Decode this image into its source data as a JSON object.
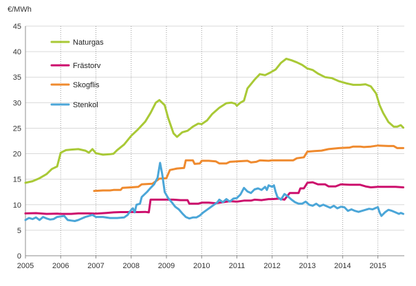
{
  "chart_data": {
    "type": "line",
    "title": "",
    "ylabel": "€/MWh",
    "xlabel": "",
    "ylim": [
      0,
      45
    ],
    "yticks": [
      0,
      5,
      10,
      15,
      20,
      25,
      30,
      35,
      40,
      45
    ],
    "xlim": [
      2005,
      2015.75
    ],
    "xticks": [
      2005,
      2006,
      2007,
      2008,
      2009,
      2010,
      2011,
      2012,
      2013,
      2014,
      2015
    ],
    "legend": "top-left inside",
    "series": [
      {
        "name": "Naturgas",
        "color": "#a9c936",
        "points": [
          [
            2005.0,
            14.3
          ],
          [
            2005.2,
            14.6
          ],
          [
            2005.4,
            15.2
          ],
          [
            2005.6,
            16.0
          ],
          [
            2005.75,
            17.0
          ],
          [
            2005.9,
            17.5
          ],
          [
            2006.0,
            20.2
          ],
          [
            2006.15,
            20.7
          ],
          [
            2006.3,
            20.8
          ],
          [
            2006.5,
            20.9
          ],
          [
            2006.7,
            20.6
          ],
          [
            2006.8,
            20.2
          ],
          [
            2006.9,
            20.9
          ],
          [
            2007.0,
            20.1
          ],
          [
            2007.2,
            19.8
          ],
          [
            2007.4,
            19.9
          ],
          [
            2007.5,
            20.0
          ],
          [
            2007.6,
            20.7
          ],
          [
            2007.8,
            21.8
          ],
          [
            2008.0,
            23.5
          ],
          [
            2008.2,
            24.8
          ],
          [
            2008.4,
            26.3
          ],
          [
            2008.55,
            28.0
          ],
          [
            2008.7,
            30.0
          ],
          [
            2008.8,
            30.5
          ],
          [
            2008.95,
            29.5
          ],
          [
            2009.05,
            27.0
          ],
          [
            2009.2,
            24.0
          ],
          [
            2009.3,
            23.3
          ],
          [
            2009.45,
            24.2
          ],
          [
            2009.6,
            24.5
          ],
          [
            2009.75,
            25.3
          ],
          [
            2009.9,
            25.9
          ],
          [
            2010.0,
            25.8
          ],
          [
            2010.15,
            26.5
          ],
          [
            2010.3,
            27.8
          ],
          [
            2010.5,
            29.0
          ],
          [
            2010.7,
            29.9
          ],
          [
            2010.85,
            30.0
          ],
          [
            2010.95,
            29.8
          ],
          [
            2011.0,
            29.4
          ],
          [
            2011.1,
            30.0
          ],
          [
            2011.2,
            30.4
          ],
          [
            2011.3,
            32.8
          ],
          [
            2011.5,
            34.5
          ],
          [
            2011.65,
            35.6
          ],
          [
            2011.8,
            35.4
          ],
          [
            2011.95,
            35.9
          ],
          [
            2012.1,
            36.5
          ],
          [
            2012.25,
            37.8
          ],
          [
            2012.4,
            38.6
          ],
          [
            2012.55,
            38.3
          ],
          [
            2012.7,
            37.9
          ],
          [
            2012.85,
            37.4
          ],
          [
            2013.0,
            36.7
          ],
          [
            2013.15,
            36.4
          ],
          [
            2013.3,
            35.7
          ],
          [
            2013.5,
            35.0
          ],
          [
            2013.7,
            34.8
          ],
          [
            2013.9,
            34.2
          ],
          [
            2014.1,
            33.8
          ],
          [
            2014.3,
            33.5
          ],
          [
            2014.5,
            33.5
          ],
          [
            2014.65,
            33.6
          ],
          [
            2014.8,
            33.2
          ],
          [
            2014.95,
            31.8
          ],
          [
            2015.05,
            29.5
          ],
          [
            2015.15,
            28.0
          ],
          [
            2015.3,
            26.2
          ],
          [
            2015.45,
            25.3
          ],
          [
            2015.55,
            25.3
          ],
          [
            2015.65,
            25.6
          ],
          [
            2015.72,
            25.1
          ]
        ]
      },
      {
        "name": "Frästorv",
        "color": "#cc0e6c",
        "points": [
          [
            2005.0,
            8.3
          ],
          [
            2005.3,
            8.35
          ],
          [
            2005.6,
            8.2
          ],
          [
            2005.9,
            8.25
          ],
          [
            2006.0,
            8.2
          ],
          [
            2006.3,
            8.2
          ],
          [
            2006.5,
            8.3
          ],
          [
            2006.8,
            8.3
          ],
          [
            2007.0,
            8.25
          ],
          [
            2007.3,
            8.4
          ],
          [
            2007.5,
            8.5
          ],
          [
            2007.7,
            8.55
          ],
          [
            2007.9,
            8.55
          ],
          [
            2008.0,
            8.6
          ],
          [
            2008.2,
            8.55
          ],
          [
            2008.4,
            8.6
          ],
          [
            2008.5,
            8.5
          ],
          [
            2008.55,
            11.0
          ],
          [
            2008.8,
            11.0
          ],
          [
            2009.0,
            11.0
          ],
          [
            2009.2,
            11.0
          ],
          [
            2009.4,
            10.9
          ],
          [
            2009.6,
            10.9
          ],
          [
            2009.65,
            10.2
          ],
          [
            2009.9,
            10.2
          ],
          [
            2010.0,
            10.4
          ],
          [
            2010.2,
            10.4
          ],
          [
            2010.4,
            10.3
          ],
          [
            2010.6,
            10.5
          ],
          [
            2010.8,
            10.7
          ],
          [
            2011.0,
            10.6
          ],
          [
            2011.2,
            10.8
          ],
          [
            2011.4,
            10.8
          ],
          [
            2011.5,
            11.0
          ],
          [
            2011.7,
            10.9
          ],
          [
            2011.9,
            11.1
          ],
          [
            2012.0,
            11.1
          ],
          [
            2012.2,
            11.2
          ],
          [
            2012.35,
            11.0
          ],
          [
            2012.5,
            12.3
          ],
          [
            2012.65,
            12.3
          ],
          [
            2012.75,
            12.3
          ],
          [
            2012.8,
            13.2
          ],
          [
            2012.9,
            13.2
          ],
          [
            2013.0,
            14.3
          ],
          [
            2013.15,
            14.4
          ],
          [
            2013.3,
            14.0
          ],
          [
            2013.5,
            14.0
          ],
          [
            2013.6,
            13.6
          ],
          [
            2013.8,
            13.6
          ],
          [
            2013.95,
            14.0
          ],
          [
            2014.2,
            13.9
          ],
          [
            2014.5,
            13.9
          ],
          [
            2014.65,
            13.6
          ],
          [
            2014.8,
            13.4
          ],
          [
            2015.0,
            13.5
          ],
          [
            2015.3,
            13.5
          ],
          [
            2015.5,
            13.5
          ],
          [
            2015.72,
            13.4
          ]
        ]
      },
      {
        "name": "Skogflis",
        "color": "#ef8a2e",
        "points": [
          [
            2006.95,
            12.7
          ],
          [
            2007.2,
            12.8
          ],
          [
            2007.4,
            12.8
          ],
          [
            2007.5,
            12.9
          ],
          [
            2007.7,
            12.9
          ],
          [
            2007.75,
            13.3
          ],
          [
            2008.0,
            13.4
          ],
          [
            2008.2,
            13.5
          ],
          [
            2008.3,
            14.0
          ],
          [
            2008.6,
            14.1
          ],
          [
            2008.8,
            15.1
          ],
          [
            2009.0,
            15.2
          ],
          [
            2009.1,
            16.8
          ],
          [
            2009.3,
            17.1
          ],
          [
            2009.5,
            17.2
          ],
          [
            2009.55,
            18.7
          ],
          [
            2009.75,
            18.7
          ],
          [
            2009.8,
            18.0
          ],
          [
            2009.95,
            18.1
          ],
          [
            2010.0,
            18.6
          ],
          [
            2010.2,
            18.6
          ],
          [
            2010.4,
            18.5
          ],
          [
            2010.5,
            18.1
          ],
          [
            2010.7,
            18.1
          ],
          [
            2010.8,
            18.4
          ],
          [
            2011.0,
            18.5
          ],
          [
            2011.3,
            18.6
          ],
          [
            2011.4,
            18.3
          ],
          [
            2011.55,
            18.4
          ],
          [
            2011.65,
            18.7
          ],
          [
            2011.9,
            18.6
          ],
          [
            2012.0,
            18.7
          ],
          [
            2012.4,
            18.7
          ],
          [
            2012.6,
            18.7
          ],
          [
            2012.7,
            19.1
          ],
          [
            2012.9,
            19.3
          ],
          [
            2013.0,
            20.4
          ],
          [
            2013.2,
            20.5
          ],
          [
            2013.4,
            20.6
          ],
          [
            2013.6,
            20.9
          ],
          [
            2013.9,
            21.1
          ],
          [
            2014.2,
            21.2
          ],
          [
            2014.3,
            21.4
          ],
          [
            2014.5,
            21.4
          ],
          [
            2014.6,
            21.3
          ],
          [
            2014.8,
            21.4
          ],
          [
            2015.0,
            21.6
          ],
          [
            2015.3,
            21.5
          ],
          [
            2015.45,
            21.5
          ],
          [
            2015.55,
            21.1
          ],
          [
            2015.72,
            21.1
          ]
        ]
      },
      {
        "name": "Stenkol",
        "color": "#4ba6d8",
        "points": [
          [
            2005.0,
            7.0
          ],
          [
            2005.1,
            7.4
          ],
          [
            2005.2,
            7.2
          ],
          [
            2005.3,
            7.5
          ],
          [
            2005.4,
            7.0
          ],
          [
            2005.5,
            7.6
          ],
          [
            2005.6,
            7.3
          ],
          [
            2005.7,
            7.1
          ],
          [
            2005.8,
            7.2
          ],
          [
            2005.9,
            7.6
          ],
          [
            2006.0,
            7.7
          ],
          [
            2006.1,
            7.8
          ],
          [
            2006.2,
            7.0
          ],
          [
            2006.3,
            6.9
          ],
          [
            2006.4,
            6.8
          ],
          [
            2006.5,
            7.0
          ],
          [
            2006.6,
            7.3
          ],
          [
            2006.7,
            7.6
          ],
          [
            2006.8,
            7.8
          ],
          [
            2006.9,
            8.0
          ],
          [
            2007.0,
            7.6
          ],
          [
            2007.2,
            7.6
          ],
          [
            2007.4,
            7.4
          ],
          [
            2007.6,
            7.4
          ],
          [
            2007.8,
            7.5
          ],
          [
            2007.9,
            8.0
          ],
          [
            2008.0,
            9.0
          ],
          [
            2008.05,
            9.3
          ],
          [
            2008.1,
            8.5
          ],
          [
            2008.15,
            10.0
          ],
          [
            2008.25,
            10.2
          ],
          [
            2008.3,
            11.5
          ],
          [
            2008.45,
            12.5
          ],
          [
            2008.55,
            13.3
          ],
          [
            2008.65,
            14.0
          ],
          [
            2008.75,
            15.3
          ],
          [
            2008.82,
            18.2
          ],
          [
            2008.88,
            16.0
          ],
          [
            2008.95,
            12.5
          ],
          [
            2009.05,
            11.3
          ],
          [
            2009.15,
            10.5
          ],
          [
            2009.25,
            9.6
          ],
          [
            2009.35,
            9.1
          ],
          [
            2009.45,
            8.3
          ],
          [
            2009.55,
            7.6
          ],
          [
            2009.65,
            7.3
          ],
          [
            2009.75,
            7.5
          ],
          [
            2009.85,
            7.5
          ],
          [
            2009.95,
            7.9
          ],
          [
            2010.05,
            8.5
          ],
          [
            2010.15,
            9.0
          ],
          [
            2010.25,
            9.5
          ],
          [
            2010.35,
            10.0
          ],
          [
            2010.45,
            10.5
          ],
          [
            2010.5,
            11.0
          ],
          [
            2010.6,
            10.5
          ],
          [
            2010.7,
            11.1
          ],
          [
            2010.8,
            10.6
          ],
          [
            2010.9,
            11.2
          ],
          [
            2011.0,
            11.3
          ],
          [
            2011.1,
            12.0
          ],
          [
            2011.2,
            13.3
          ],
          [
            2011.3,
            12.6
          ],
          [
            2011.4,
            12.3
          ],
          [
            2011.5,
            13.0
          ],
          [
            2011.6,
            13.2
          ],
          [
            2011.7,
            12.9
          ],
          [
            2011.8,
            13.5
          ],
          [
            2011.85,
            12.9
          ],
          [
            2011.9,
            13.8
          ],
          [
            2012.0,
            13.5
          ],
          [
            2012.05,
            13.8
          ],
          [
            2012.1,
            12.5
          ],
          [
            2012.15,
            11.5
          ],
          [
            2012.25,
            11.0
          ],
          [
            2012.35,
            12.1
          ],
          [
            2012.45,
            11.6
          ],
          [
            2012.55,
            11.0
          ],
          [
            2012.65,
            10.5
          ],
          [
            2012.75,
            10.2
          ],
          [
            2012.85,
            10.2
          ],
          [
            2012.95,
            10.6
          ],
          [
            2013.05,
            10.0
          ],
          [
            2013.15,
            9.8
          ],
          [
            2013.25,
            10.2
          ],
          [
            2013.35,
            9.7
          ],
          [
            2013.45,
            10.0
          ],
          [
            2013.55,
            9.7
          ],
          [
            2013.65,
            9.4
          ],
          [
            2013.75,
            9.8
          ],
          [
            2013.85,
            9.3
          ],
          [
            2013.95,
            9.6
          ],
          [
            2014.05,
            9.5
          ],
          [
            2014.15,
            8.8
          ],
          [
            2014.25,
            9.1
          ],
          [
            2014.35,
            8.8
          ],
          [
            2014.45,
            8.6
          ],
          [
            2014.55,
            8.8
          ],
          [
            2014.65,
            9.0
          ],
          [
            2014.75,
            9.2
          ],
          [
            2014.85,
            9.1
          ],
          [
            2014.95,
            9.4
          ],
          [
            2015.0,
            9.5
          ],
          [
            2015.05,
            8.5
          ],
          [
            2015.1,
            7.8
          ],
          [
            2015.2,
            8.5
          ],
          [
            2015.3,
            9.0
          ],
          [
            2015.4,
            8.8
          ],
          [
            2015.5,
            8.5
          ],
          [
            2015.6,
            8.2
          ],
          [
            2015.65,
            8.4
          ],
          [
            2015.72,
            8.2
          ]
        ]
      }
    ]
  }
}
